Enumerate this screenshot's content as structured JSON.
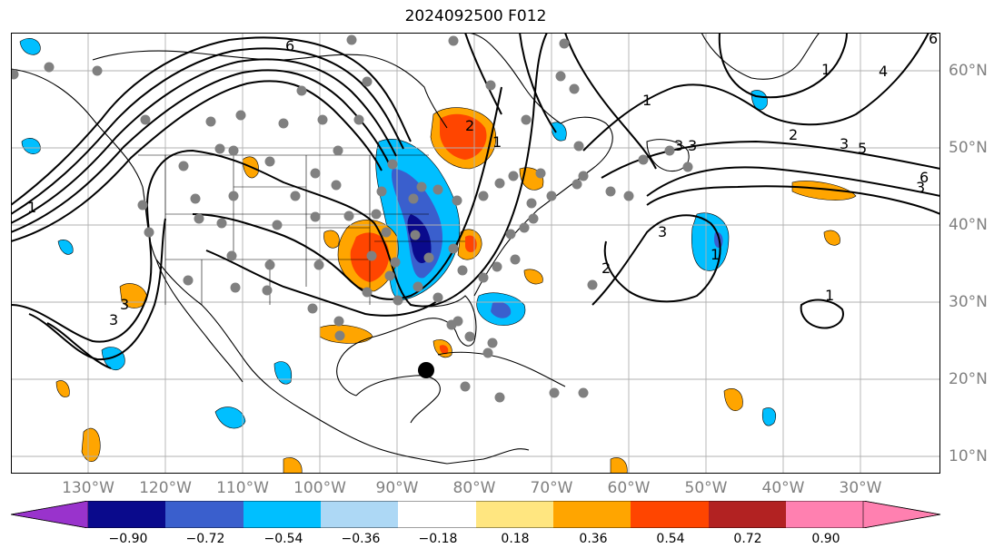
{
  "title": "2024092500 F012",
  "lon_labels": [
    "130°W",
    "120°W",
    "110°W",
    "100°W",
    "90°W",
    "80°W",
    "70°W",
    "60°W",
    "50°W",
    "40°W",
    "30°W"
  ],
  "lat_labels": [
    "60°N",
    "50°N",
    "40°N",
    "30°N",
    "20°N",
    "10°N"
  ],
  "contour_labels": [
    "6",
    "1",
    "2",
    "3",
    "1",
    "2",
    "3",
    "6",
    "3",
    "1",
    "1",
    "3",
    "4",
    "5",
    "3",
    "6",
    "2",
    "3",
    "1",
    "3",
    "1"
  ],
  "colorbar": {
    "ticks": [
      "−0.90",
      "−0.72",
      "−0.54",
      "−0.36",
      "−0.18",
      "0.18",
      "0.36",
      "0.54",
      "0.72",
      "0.90"
    ],
    "colors": [
      "#9933cc",
      "#0a0a8c",
      "#3a5fcd",
      "#00bfff",
      "#add8f5",
      "#ffffff",
      "#ffe680",
      "#ffa500",
      "#ff4500",
      "#b22222",
      "#ff80b0"
    ]
  },
  "markers": {
    "storm_center_color": "#000000",
    "station_color": "#808080"
  }
}
